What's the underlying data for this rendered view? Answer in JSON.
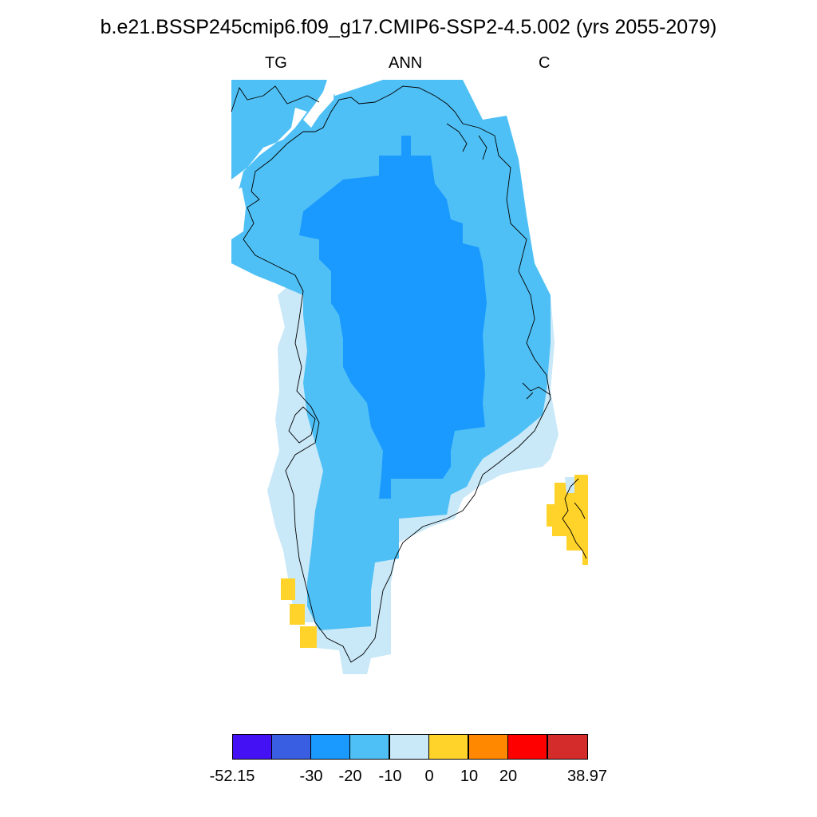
{
  "title": "b.e21.BSSP245cmip6.f09_g17.CMIP6-SSP2-4.5.002 (yrs 2055-2079)",
  "subtitles": {
    "left": "TG",
    "center": "ANN",
    "right": "C"
  },
  "map": {
    "region": "Greenland",
    "field": "TG",
    "season": "ANN",
    "units": "C",
    "colors": {
      "lt_-30": "#1a99ff",
      "-20_to_-10": "#4fc0f5",
      "-10_to_0": "#c9e8f8",
      "0_to_10": "#ffd32a",
      "land_outline": "#000000"
    }
  },
  "colorbar": {
    "colors": [
      "#4411f5",
      "#3a5ee2",
      "#1a99ff",
      "#4fc0f5",
      "#c9e8f8",
      "#ffd32a",
      "#ff8800",
      "#ff0000",
      "#d42b2b"
    ],
    "labels": [
      "-52.15",
      "-30",
      "-20",
      "-10",
      "0",
      "10",
      "20",
      "38.97"
    ]
  }
}
